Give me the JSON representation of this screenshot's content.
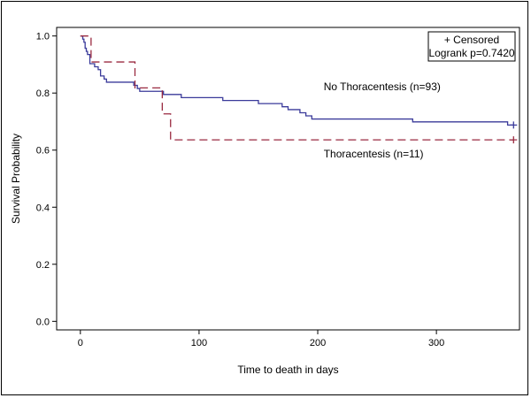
{
  "chart_data": {
    "type": "line",
    "title": "",
    "xlabel": "Time to death in days",
    "ylabel": "Survival Probability",
    "xlim": [
      -20,
      370
    ],
    "ylim": [
      -0.03,
      1.03
    ],
    "xticks": [
      0,
      100,
      200,
      300
    ],
    "yticks": [
      0.0,
      0.2,
      0.4,
      0.6,
      0.8,
      1.0
    ],
    "ytick_labels": [
      "0.0",
      "0.2",
      "0.4",
      "0.6",
      "0.8",
      "1.0"
    ],
    "legend": {
      "lines": [
        "+ Censored",
        "Logrank p=0.7420"
      ],
      "position": "top-right"
    },
    "series": [
      {
        "name": "No Thoracentesis (n=93)",
        "color": "#3a3a9a",
        "dash": "solid",
        "label_at": [
          205,
          0.81
        ],
        "steps": [
          [
            0,
            1.0
          ],
          [
            2,
            0.989
          ],
          [
            3,
            0.978
          ],
          [
            4,
            0.957
          ],
          [
            5,
            0.946
          ],
          [
            6,
            0.935
          ],
          [
            8,
            0.903
          ],
          [
            12,
            0.892
          ],
          [
            15,
            0.882
          ],
          [
            17,
            0.86
          ],
          [
            20,
            0.849
          ],
          [
            22,
            0.838
          ],
          [
            45,
            0.827
          ],
          [
            48,
            0.816
          ],
          [
            50,
            0.806
          ],
          [
            60,
            0.806
          ],
          [
            70,
            0.795
          ],
          [
            80,
            0.795
          ],
          [
            85,
            0.784
          ],
          [
            120,
            0.774
          ],
          [
            150,
            0.763
          ],
          [
            170,
            0.752
          ],
          [
            175,
            0.742
          ],
          [
            185,
            0.731
          ],
          [
            190,
            0.72
          ],
          [
            195,
            0.709
          ],
          [
            200,
            0.709
          ],
          [
            280,
            0.699
          ],
          [
            360,
            0.688
          ],
          [
            365,
            0.688
          ]
        ],
        "censored": [
          [
            365,
            0.688
          ]
        ]
      },
      {
        "name": "Thoracentesis (n=11)",
        "color": "#9a2a40",
        "dash": "dashed",
        "label_at": [
          205,
          0.575
        ],
        "steps": [
          [
            0,
            1.0
          ],
          [
            8,
            1.0
          ],
          [
            9,
            0.909
          ],
          [
            45,
            0.909
          ],
          [
            46,
            0.818
          ],
          [
            68,
            0.818
          ],
          [
            69,
            0.727
          ],
          [
            75,
            0.727
          ],
          [
            76,
            0.636
          ],
          [
            365,
            0.636
          ]
        ],
        "censored": [
          [
            365,
            0.636
          ]
        ]
      }
    ]
  }
}
